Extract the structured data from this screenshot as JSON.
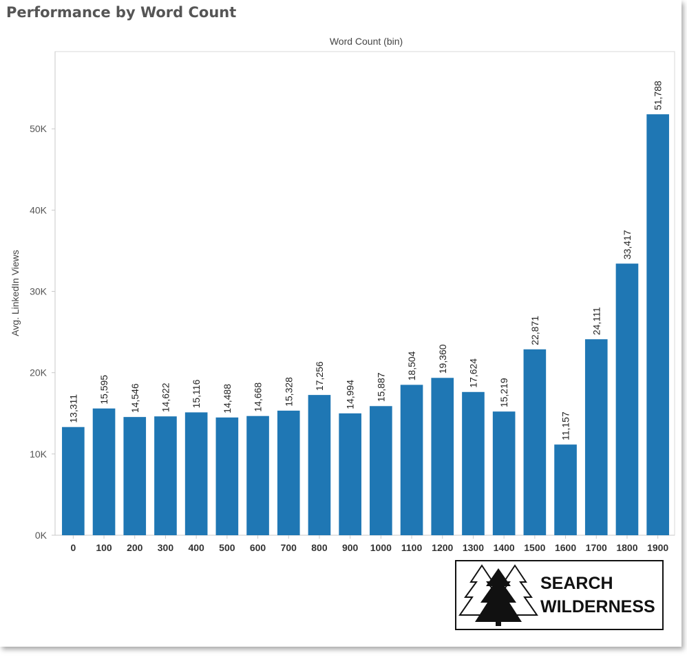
{
  "title": "Performance by Word Count",
  "chart_data": {
    "type": "bar",
    "title": "Performance by Word Count",
    "xlabel": "Word Count (bin)",
    "ylabel": "Avg. LinkedIn Views",
    "categories": [
      "0",
      "100",
      "200",
      "300",
      "400",
      "500",
      "600",
      "700",
      "800",
      "900",
      "1000",
      "1100",
      "1200",
      "1300",
      "1400",
      "1500",
      "1600",
      "1700",
      "1800",
      "1900"
    ],
    "values": [
      13311,
      15595,
      14546,
      14622,
      15116,
      14488,
      14668,
      15328,
      17256,
      14994,
      15887,
      18504,
      19360,
      17624,
      15219,
      22871,
      11157,
      24111,
      33417,
      51788
    ],
    "value_labels": [
      "13,311",
      "15,595",
      "14,546",
      "14,622",
      "15,116",
      "14,488",
      "14,668",
      "15,328",
      "17,256",
      "14,994",
      "15,887",
      "18,504",
      "19,360",
      "17,624",
      "15,219",
      "22,871",
      "11,157",
      "24,111",
      "33,417",
      "51,788"
    ],
    "yticks": [
      0,
      10000,
      20000,
      30000,
      40000,
      50000
    ],
    "ytick_labels": [
      "0K",
      "10K",
      "20K",
      "30K",
      "40K",
      "50K"
    ],
    "ylim": [
      0,
      59500
    ],
    "bar_color": "#1f77b4",
    "grid": false,
    "legend": "none"
  },
  "logo": {
    "line1": "SEARCH",
    "line2": "WILDERNESS",
    "icon": "pine-trees-icon"
  }
}
